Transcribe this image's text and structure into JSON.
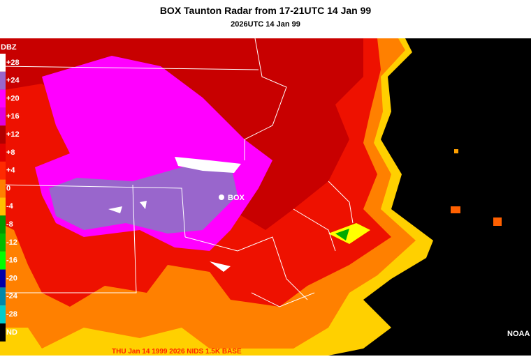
{
  "header": {
    "title": "BOX Taunton Radar from 17-21UTC 14 Jan 99",
    "subtitle": "2026UTC 14 Jan 99"
  },
  "legend": {
    "unit": "DBZ",
    "entries": [
      {
        "label": "+28",
        "color": "#ffffff"
      },
      {
        "label": "+24",
        "color": "#9966cc"
      },
      {
        "label": "+20",
        "color": "#ff00ff"
      },
      {
        "label": "+16",
        "color": "#e000e0"
      },
      {
        "label": "+12",
        "color": "#b00000"
      },
      {
        "label": "+8",
        "color": "#e00000"
      },
      {
        "label": "+4",
        "color": "#ff2a00"
      },
      {
        "label": "0",
        "color": "#ff8000"
      },
      {
        "label": "-4",
        "color": "#ffc000"
      },
      {
        "label": "-8",
        "color": "#009900"
      },
      {
        "label": "-12",
        "color": "#00bb00"
      },
      {
        "label": "-16",
        "color": "#00ff00"
      },
      {
        "label": "-20",
        "color": "#0000aa"
      },
      {
        "label": "-24",
        "color": "#0088aa"
      },
      {
        "label": "-28",
        "color": "#00cccc"
      },
      {
        "label": "ND",
        "color": "#000000"
      }
    ]
  },
  "site": {
    "label": "BOX"
  },
  "credit": "NOAA",
  "footer": "THU Jan 14 1999 2026 NIDS  1.5K  BASE"
}
